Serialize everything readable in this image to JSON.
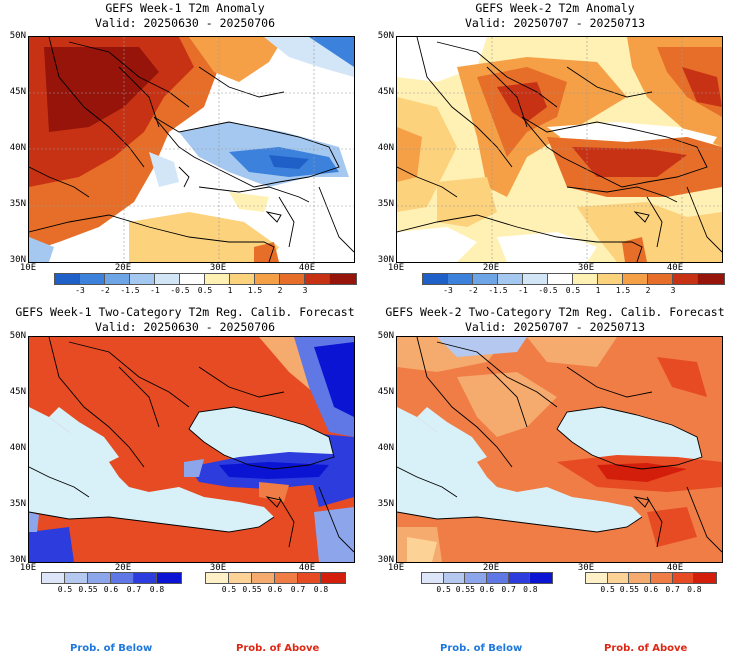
{
  "panels": [
    {
      "title": "GEFS Week-1 T2m Anomaly",
      "valid": "Valid: 20250630 - 20250706"
    },
    {
      "title": "GEFS Week-2 T2m Anomaly",
      "valid": "Valid: 20250707 - 20250713"
    },
    {
      "title": "GEFS Week-1 Two-Category T2m Reg. Calib. Forecast",
      "valid": "Valid: 20250630 - 20250706"
    },
    {
      "title": "GEFS Week-2 Two-Category T2m Reg. Calib. Forecast",
      "valid": "Valid: 20250707 - 20250713"
    }
  ],
  "lat_labels": [
    "50N",
    "45N",
    "40N",
    "35N",
    "30N"
  ],
  "lon_labels": [
    "10E",
    "20E",
    "30E",
    "40E"
  ],
  "anomaly_colorbar": {
    "labels": [
      "-3",
      "-2",
      "-1.5",
      "-1",
      "-0.5",
      "0.5",
      "1",
      "1.5",
      "2",
      "3"
    ],
    "colors": [
      "#1f5fc8",
      "#3c82dc",
      "#6ea5e6",
      "#a5c8f0",
      "#d2e6f8",
      "#ffffff",
      "#fff0b4",
      "#fcd27d",
      "#f5a046",
      "#e66e28",
      "#c83214",
      "#96140a"
    ]
  },
  "prob_below_colorbar": {
    "labels": [
      "0.5",
      "0.55",
      "0.6",
      "0.7",
      "0.8"
    ],
    "colors": [
      "#dce6f8",
      "#b4c8f0",
      "#8ca5eb",
      "#5f78e6",
      "#2d3cdc",
      "#0a14d2"
    ]
  },
  "prob_above_colorbar": {
    "labels": [
      "0.5",
      "0.55",
      "0.6",
      "0.7",
      "0.8"
    ],
    "colors": [
      "#fff0c8",
      "#fcd296",
      "#f5aa6e",
      "#f07d46",
      "#e64b23",
      "#d21e0a"
    ]
  },
  "footer": {
    "below": "Prob. of Below",
    "above": "Prob. of Above"
  },
  "colors": {
    "sea_prob": "#d8f0f8",
    "below_text": "#1e78dc",
    "above_text": "#dc2814"
  }
}
